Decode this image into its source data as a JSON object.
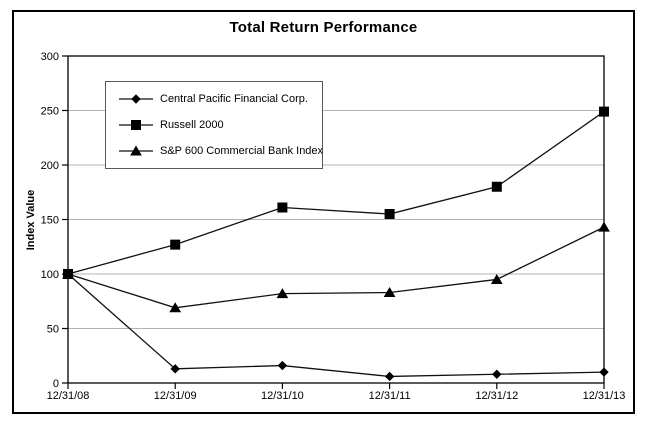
{
  "chart_data": {
    "type": "line",
    "title": "Total Return Performance",
    "xlabel": "",
    "ylabel": "Index Value",
    "categories": [
      "12/31/08",
      "12/31/09",
      "12/31/10",
      "12/31/11",
      "12/31/12",
      "12/31/13"
    ],
    "series": [
      {
        "name": "Central Pacific Financial Corp.",
        "marker": "diamond",
        "values": [
          100,
          13,
          16,
          6,
          8,
          10
        ]
      },
      {
        "name": "Russell 2000",
        "marker": "square",
        "values": [
          100,
          127,
          161,
          155,
          180,
          249
        ]
      },
      {
        "name": "S&P 600 Commercial Bank Index",
        "marker": "triangle",
        "values": [
          100,
          69,
          82,
          83,
          95,
          143
        ]
      }
    ],
    "ylim": [
      0,
      300
    ],
    "ytick_step": 50,
    "yticks": [
      0,
      50,
      100,
      150,
      200,
      250,
      300
    ],
    "grid": true,
    "legend_position": "upper-left",
    "colors": {
      "line": "#111111",
      "marker": "#000000",
      "grid": "#b3b3b3",
      "axis": "#000000",
      "background": "#ffffff",
      "border": "#000000"
    }
  }
}
